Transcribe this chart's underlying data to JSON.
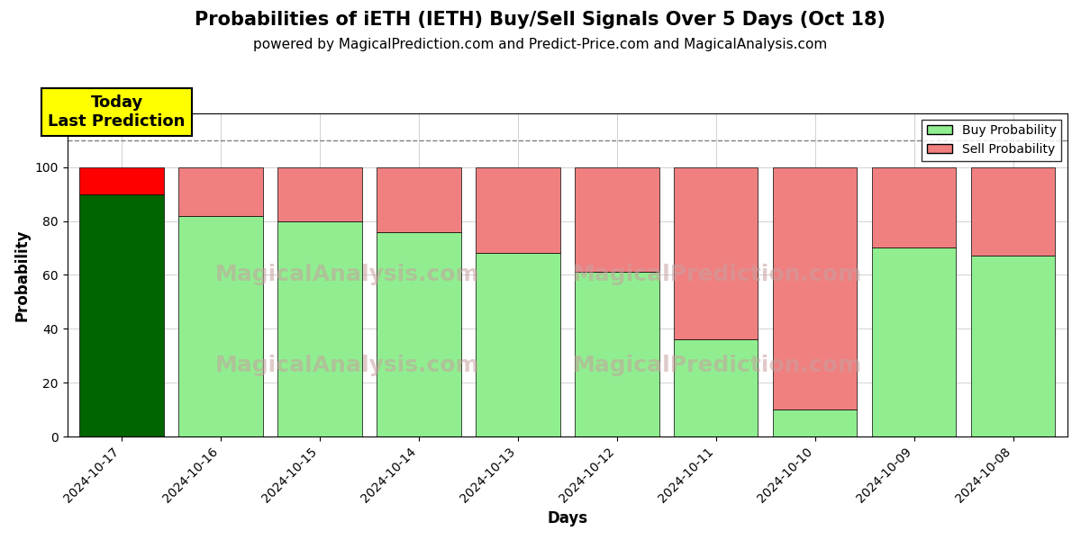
{
  "title": "Probabilities of iETH (IETH) Buy/Sell Signals Over 5 Days (Oct 18)",
  "subtitle": "powered by MagicalPrediction.com and Predict-Price.com and MagicalAnalysis.com",
  "xlabel": "Days",
  "ylabel": "Probability",
  "dates": [
    "2024-10-17",
    "2024-10-16",
    "2024-10-15",
    "2024-10-14",
    "2024-10-13",
    "2024-10-12",
    "2024-10-11",
    "2024-10-10",
    "2024-10-09",
    "2024-10-08"
  ],
  "buy_probs": [
    90,
    82,
    80,
    76,
    68,
    61,
    36,
    10,
    70,
    67
  ],
  "sell_probs": [
    10,
    18,
    20,
    24,
    32,
    39,
    64,
    90,
    30,
    33
  ],
  "today_buy_color": "#006400",
  "today_sell_color": "#ff0000",
  "buy_color": "#90EE90",
  "sell_color": "#F08080",
  "today_annotation": "Today\nLast Prediction",
  "annotation_bg_color": "#FFFF00",
  "dashed_line_y": 110,
  "ylim": [
    0,
    120
  ],
  "yticks": [
    0,
    20,
    40,
    60,
    80,
    100
  ],
  "legend_buy_label": "Buy Probability",
  "legend_sell_label": "Sell Probability",
  "bar_width": 0.85,
  "figsize": [
    12.0,
    6.0
  ],
  "dpi": 100,
  "title_fontsize": 15,
  "subtitle_fontsize": 11,
  "axis_label_fontsize": 12,
  "tick_fontsize": 10
}
